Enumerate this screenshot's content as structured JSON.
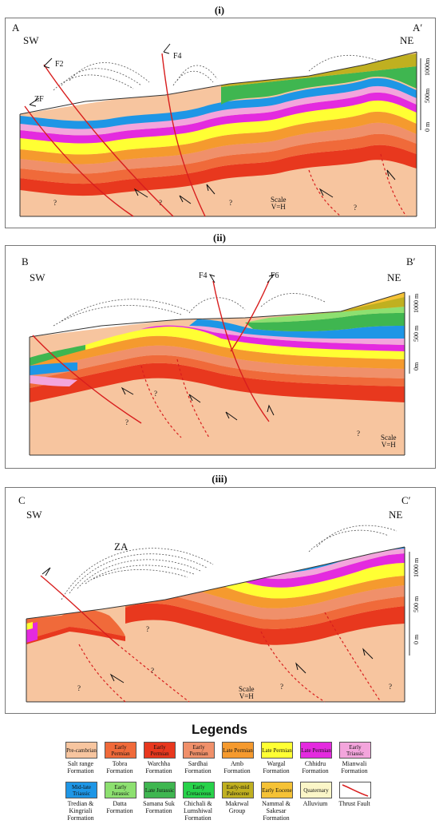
{
  "panels": [
    {
      "title": "(i)",
      "left_label": "A",
      "right_label": "A′",
      "left_dir": "SW",
      "right_dir": "NE",
      "faults": [
        "F2",
        "F4",
        "ZF"
      ],
      "scale_line1": "Scale",
      "scale_line2": "V=H",
      "ticks": [
        "1000m",
        "500m",
        "0 m"
      ]
    },
    {
      "title": "(ii)",
      "left_label": "B",
      "right_label": "B′",
      "left_dir": "SW",
      "right_dir": "NE",
      "faults": [
        "F4",
        "F6"
      ],
      "scale_line1": "Scale",
      "scale_line2": "V=H",
      "ticks": [
        "1000 m",
        "500 m",
        "0m"
      ]
    },
    {
      "title": "(iii)",
      "left_label": "C",
      "right_label": "C′",
      "left_dir": "SW",
      "right_dir": "NE",
      "faults": [
        "ZA"
      ],
      "scale_line1": "Scale",
      "scale_line2": "V=H",
      "ticks": [
        "1000 m",
        "500 m",
        "0 m"
      ]
    }
  ],
  "unknown_mark": "?",
  "legends_title": "Legends",
  "legend": [
    {
      "age": "Pre-cambrian",
      "name": "Salt range Formation",
      "color": "#f7c59f"
    },
    {
      "age": "Early Permian",
      "name": "Tobra Formation",
      "color": "#f06a3a"
    },
    {
      "age": "Early Permian",
      "name": "Warchha Formation",
      "color": "#e8381e"
    },
    {
      "age": "Early Permian",
      "name": "Sardhai Formation",
      "color": "#f0906a"
    },
    {
      "age": "Late Permian",
      "name": "Amb Formation",
      "color": "#f59a2e"
    },
    {
      "age": "Late Permian",
      "name": "Wargal Formation",
      "color": "#ffff33"
    },
    {
      "age": "Late Permian",
      "name": "Chhidru Formation",
      "color": "#e42adf"
    },
    {
      "age": "Early Triassic",
      "name": "Mianwali Formation",
      "color": "#f3a5dc"
    },
    {
      "age": "Mid-late Triassic",
      "name": "Tredian & Kingriali Formation",
      "color": "#1e96e6"
    },
    {
      "age": "Early Jurassic",
      "name": "Datta Formation",
      "color": "#8de070"
    },
    {
      "age": "Late Jurassic",
      "name": "Samana Suk Formation",
      "color": "#3fb650"
    },
    {
      "age": "Early Cretaceous",
      "name": "Chichali & Lumshiwal Formation",
      "color": "#27d24a"
    },
    {
      "age": "Early-mid Paleocene",
      "name": "Makrwal Group",
      "color": "#c0b020"
    },
    {
      "age": "Early Eocene",
      "name": "Nammal & Sakesar Formation",
      "color": "#f5c236"
    },
    {
      "age": "Quaternary",
      "name": "Alluvium",
      "color": "#fbf6c8"
    },
    {
      "age": "",
      "name": "Thrust Fault",
      "color": "#d81e1e"
    }
  ]
}
